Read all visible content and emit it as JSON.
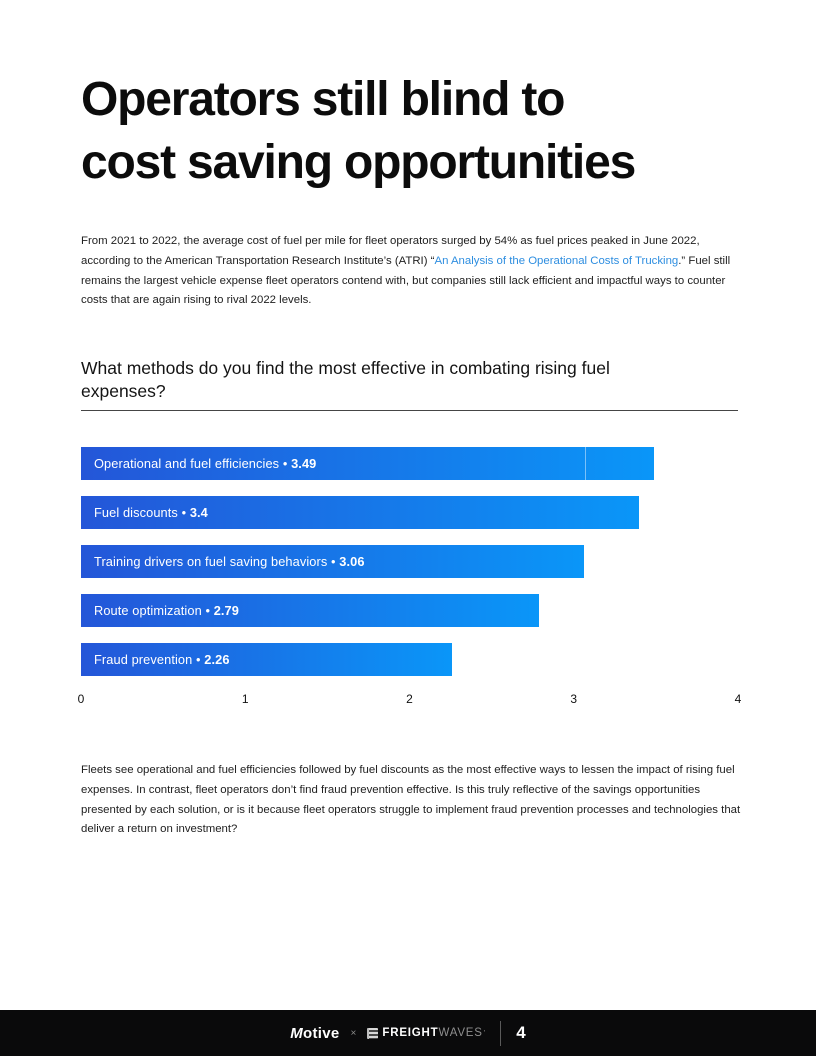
{
  "heading": {
    "line1": "Operators still blind to",
    "line2": "cost saving opportunities"
  },
  "intro": {
    "before_link": "From 2021 to 2022, the average cost of fuel per mile for fleet operators surged by 54% as fuel prices peaked in June 2022, according to the American Transportation Research Institute’s (ATRI) “",
    "link_text": "An Analysis of the Operational Costs of Trucking",
    "after_link": ".” Fuel still remains the largest vehicle expense fleet operators contend with, but companies still lack efficient and impactful ways to counter costs that are again rising to rival 2022 levels."
  },
  "question": "What methods do you find the most effective in combating rising fuel expenses?",
  "chart_data": {
    "type": "bar",
    "orientation": "horizontal",
    "title": "What methods do you find the most effective in combating rising fuel expenses?",
    "categories": [
      "Operational and fuel efficiencies",
      "Fuel discounts",
      "Training drivers on fuel saving behaviors",
      "Route optimization",
      "Fraud prevention"
    ],
    "values": [
      3.49,
      3.4,
      3.06,
      2.79,
      2.26
    ],
    "value_labels": [
      "3.49",
      "3.4",
      "3.06",
      "2.79",
      "2.26"
    ],
    "label_separator": "•",
    "xlim": [
      0,
      4
    ],
    "x_ticks": [
      "0",
      "1",
      "2",
      "3",
      "4"
    ],
    "grid": "off",
    "legend": "none",
    "bar_gradient": [
      "#2456d8",
      "#0a96f8"
    ],
    "bar1_divider_pos": 0.88
  },
  "analysis": "Fleets see operational and fuel efficiencies followed by fuel discounts as the most effective ways to lessen the impact of rising fuel expenses. In contrast, fleet operators don’t find fraud prevention effective. Is this truly reflective of the savings opportunities presented by each solution, or is it because fleet operators struggle to implement fraud prevention processes and technologies that deliver a return on investment?",
  "footer": {
    "brand1": "Motive",
    "separator": "×",
    "brand2_part1": "FREIGHT",
    "brand2_part2": "WAVES",
    "brand2_mark": "’",
    "page_number": "4"
  },
  "colors": {
    "link": "#2e8ee0",
    "bar_start": "#2456d8",
    "bar_end": "#0a96f8",
    "footer_bg": "#0a0a0b"
  }
}
